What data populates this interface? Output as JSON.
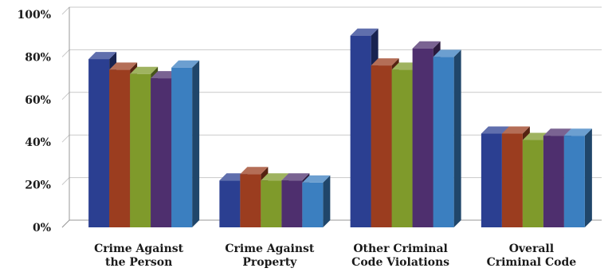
{
  "chart_data": {
    "type": "bar",
    "style": "3d-clustered-column",
    "categories": [
      [
        "Crime Against",
        "the Person"
      ],
      [
        "Crime Against",
        "Property"
      ],
      [
        "Other Criminal",
        "Code Violations"
      ],
      [
        "Overall",
        "Criminal Code"
      ]
    ],
    "series": [
      {
        "color": "#2b3f91",
        "values": [
          79,
          22,
          90,
          44
        ]
      },
      {
        "color": "#9b3d1f",
        "values": [
          74,
          25,
          76,
          44
        ]
      },
      {
        "color": "#7f9a2b",
        "values": [
          72,
          22,
          74,
          41
        ]
      },
      {
        "color": "#4e2f6e",
        "values": [
          70,
          22,
          84,
          43
        ]
      },
      {
        "color": "#3b7fc0",
        "values": [
          75,
          21,
          80,
          43
        ]
      }
    ],
    "yticks": [
      "0%",
      "20%",
      "40%",
      "60%",
      "80%",
      "100%"
    ],
    "ylim": [
      0,
      100
    ],
    "grid": true,
    "legend": "none",
    "title": "",
    "xlabel": "",
    "ylabel": ""
  }
}
